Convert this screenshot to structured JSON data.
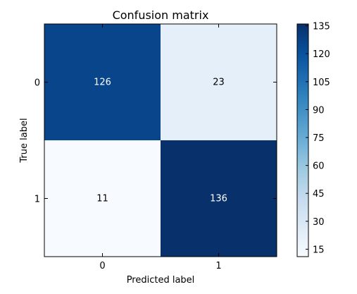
{
  "chart_data": {
    "type": "heatmap",
    "title": "Confusion matrix",
    "xlabel": "Predicted label",
    "ylabel": "True label",
    "x_categories": [
      "0",
      "1"
    ],
    "y_categories": [
      "0",
      "1"
    ],
    "values": [
      [
        126,
        23
      ],
      [
        11,
        136
      ]
    ],
    "colormap": "Blues",
    "colorbar": {
      "range": [
        11,
        136
      ],
      "ticks": [
        15,
        30,
        45,
        60,
        75,
        90,
        105,
        120,
        135
      ]
    },
    "grid": false,
    "cell_text_colors": {
      "dark": "#ffffff",
      "light": "#000000"
    }
  }
}
